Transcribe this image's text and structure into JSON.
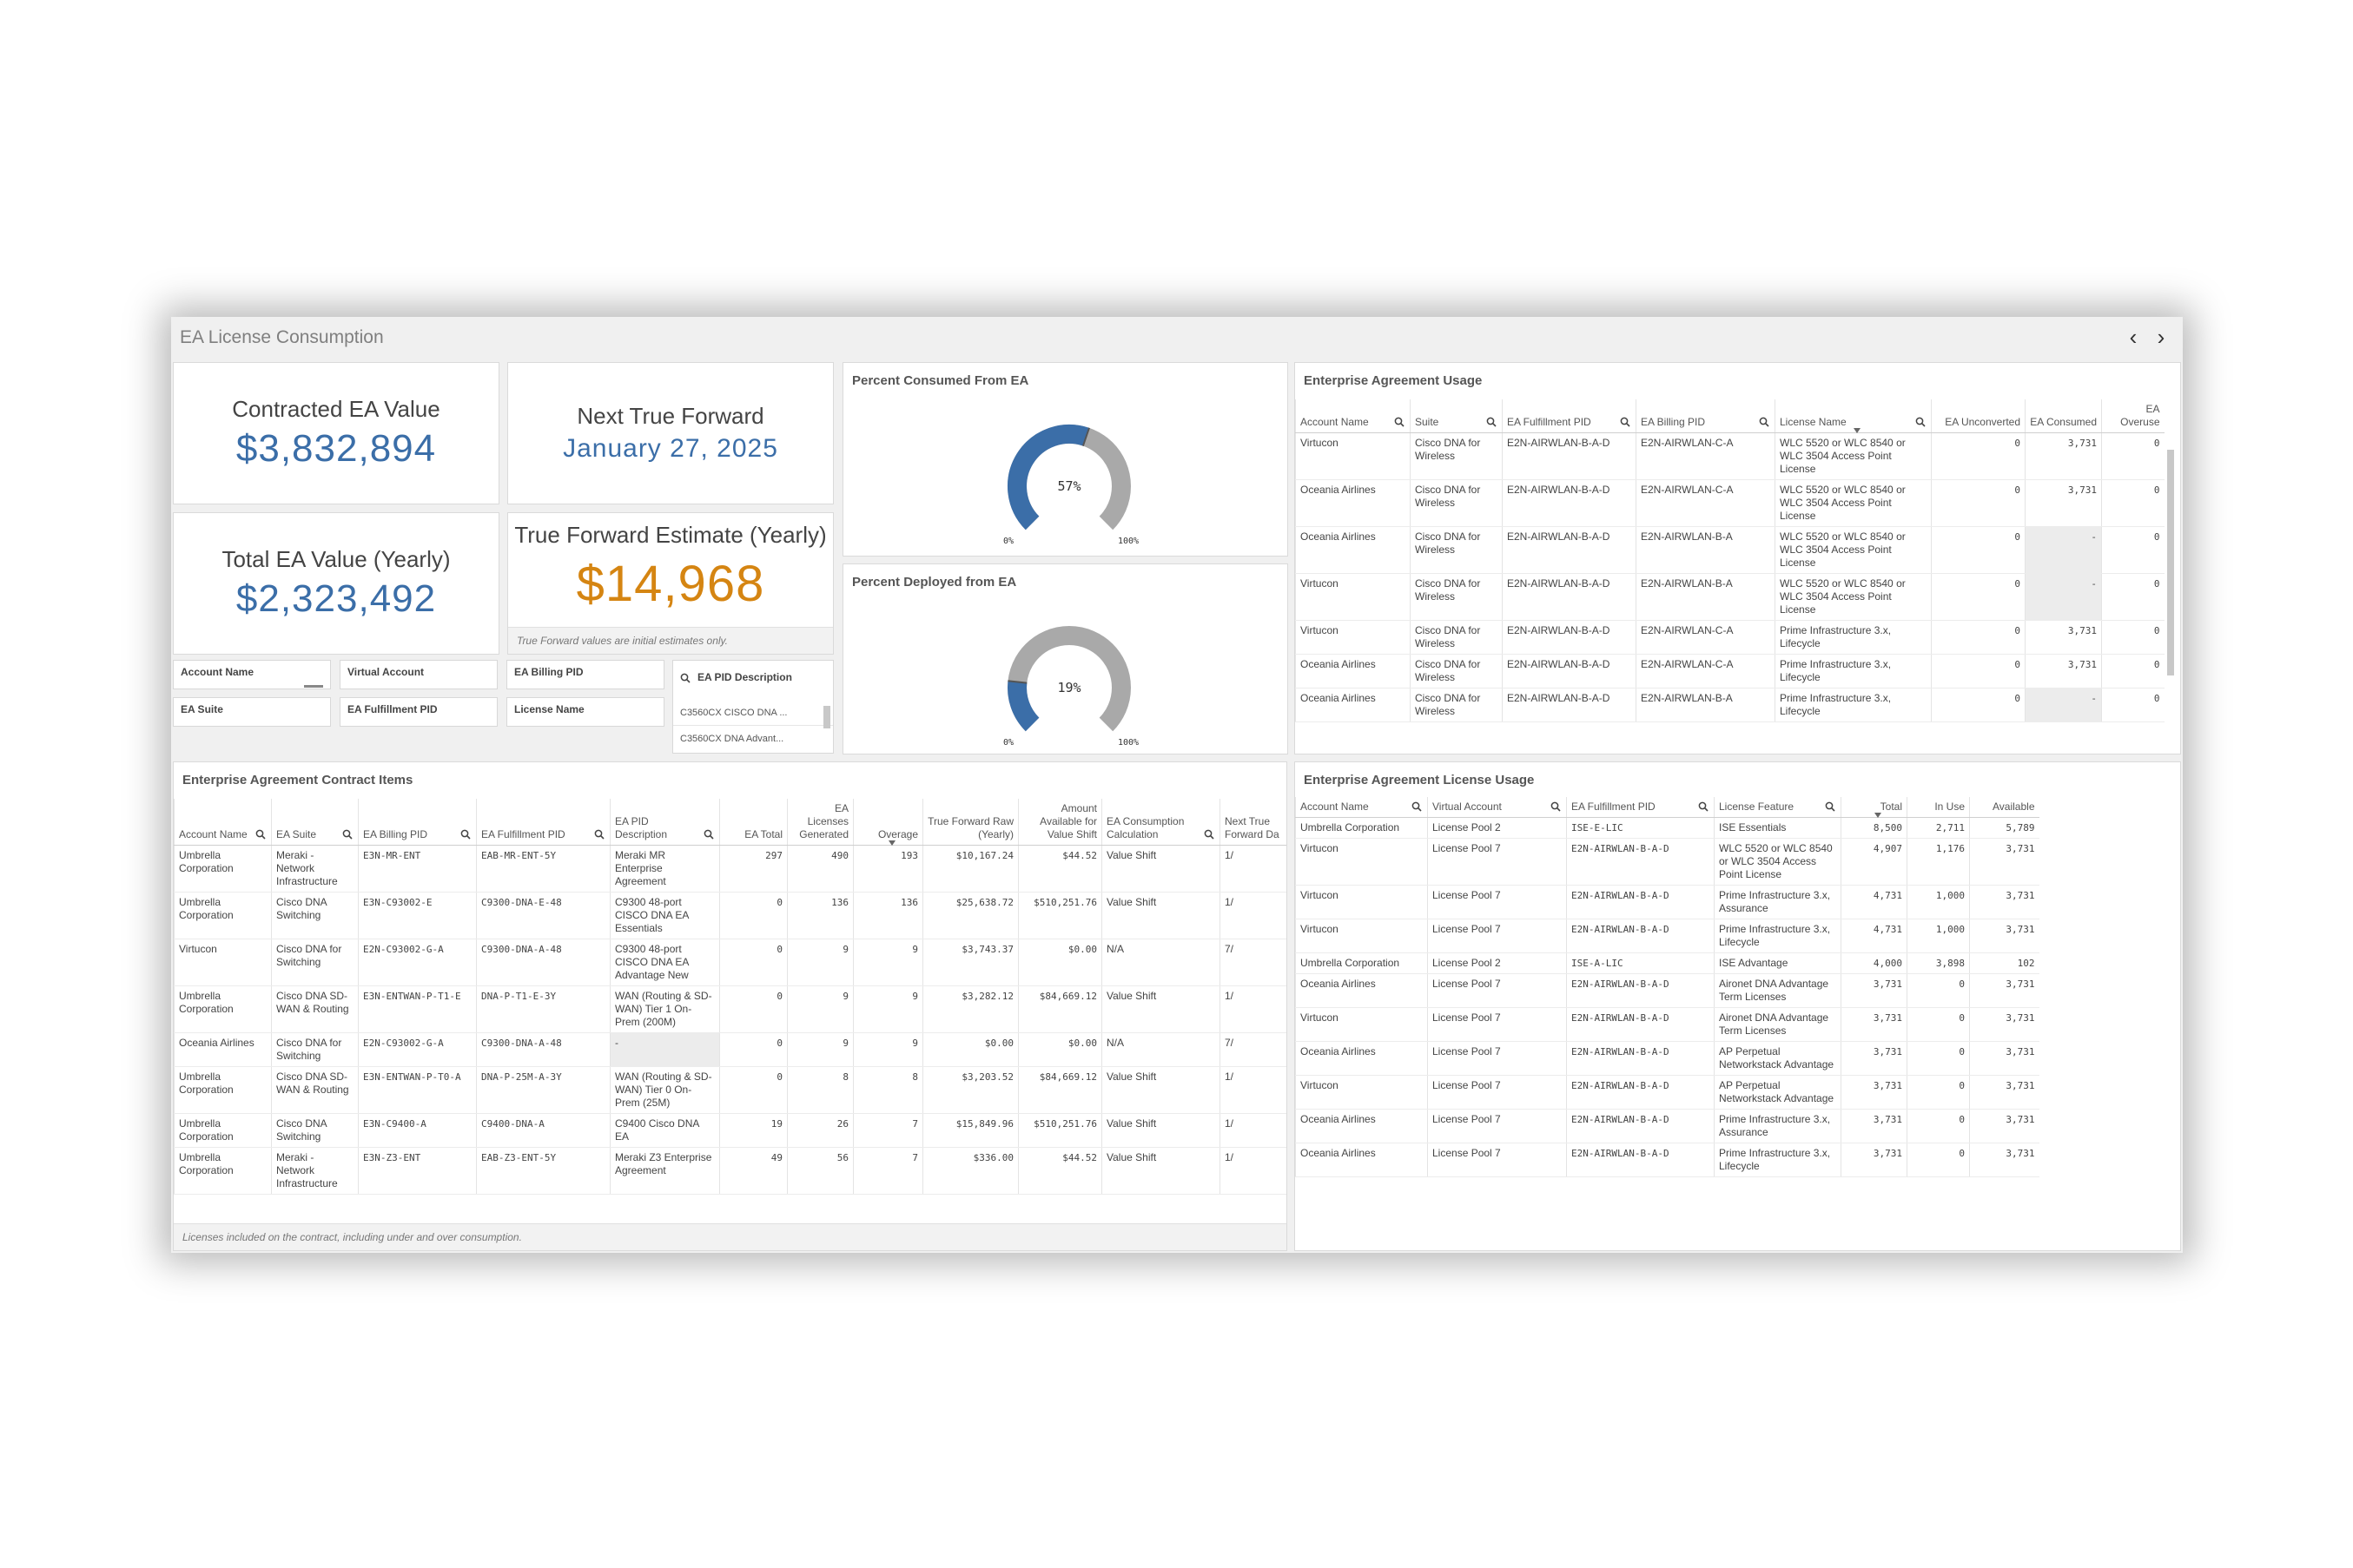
{
  "app": {
    "title": "EA License Consumption",
    "prev_icon": "‹",
    "next_icon": "›"
  },
  "kpis": {
    "contracted": {
      "label": "Contracted EA Value",
      "value": "$3,832,894"
    },
    "next_tf": {
      "label": "Next True Forward",
      "value": "January 27, 2025"
    },
    "total_yearly": {
      "label": "Total EA Value (Yearly)",
      "value": "$2,323,492"
    },
    "tf_estimate": {
      "label": "True Forward Estimate (Yearly)",
      "value": "$14,968",
      "note": "True Forward values are initial estimates only."
    }
  },
  "filters": {
    "account_name": "Account Name",
    "virtual_account": "Virtual Account",
    "ea_billing_pid": "EA Billing PID",
    "ea_suite": "EA Suite",
    "ea_fulfillment_pid": "EA Fulfillment PID",
    "license_name": "License Name",
    "ea_pid_description": {
      "label": "EA PID Description",
      "items": [
        "C3560CX CISCO DNA ...",
        "C3560CX DNA Advant..."
      ]
    }
  },
  "gauges": {
    "consumed": {
      "title": "Percent Consumed From EA",
      "value": "57%",
      "fraction": 0.57,
      "min_label": "0%",
      "max_label": "100%"
    },
    "deployed": {
      "title": "Percent Deployed from EA",
      "value": "19%",
      "fraction": 0.19,
      "min_label": "0%",
      "max_label": "100%"
    }
  },
  "colors": {
    "accent": "#3b6ea8",
    "orange": "#d58512",
    "gauge_track": "#a9a9a9"
  },
  "usage": {
    "title": "Enterprise Agreement Usage",
    "headers": [
      "Account Name",
      "Suite",
      "EA Fulfillment PID",
      "EA Billing PID",
      "License Name",
      "EA Unconverted",
      "EA Consumed",
      "EA Overuse"
    ],
    "rows": [
      [
        "Virtucon",
        "Cisco DNA for Wireless",
        "E2N-AIRWLAN-B-A-D",
        "E2N-AIRWLAN-C-A",
        "WLC 5520 or WLC 8540 or WLC 3504 Access Point License",
        "0",
        "3,731",
        "0"
      ],
      [
        "Oceania Airlines",
        "Cisco DNA for Wireless",
        "E2N-AIRWLAN-B-A-D",
        "E2N-AIRWLAN-C-A",
        "WLC 5520 or WLC 8540 or WLC 3504 Access Point License",
        "0",
        "3,731",
        "0"
      ],
      [
        "Oceania Airlines",
        "Cisco DNA for Wireless",
        "E2N-AIRWLAN-B-A-D",
        "E2N-AIRWLAN-B-A",
        "WLC 5520 or WLC 8540 or WLC 3504 Access Point License",
        "0",
        "-",
        "0"
      ],
      [
        "Virtucon",
        "Cisco DNA for Wireless",
        "E2N-AIRWLAN-B-A-D",
        "E2N-AIRWLAN-B-A",
        "WLC 5520 or WLC 8540 or WLC 3504 Access Point License",
        "0",
        "-",
        "0"
      ],
      [
        "Virtucon",
        "Cisco DNA for Wireless",
        "E2N-AIRWLAN-B-A-D",
        "E2N-AIRWLAN-C-A",
        "Prime Infrastructure 3.x, Lifecycle",
        "0",
        "3,731",
        "0"
      ],
      [
        "Oceania Airlines",
        "Cisco DNA for Wireless",
        "E2N-AIRWLAN-B-A-D",
        "E2N-AIRWLAN-C-A",
        "Prime Infrastructure 3.x, Lifecycle",
        "0",
        "3,731",
        "0"
      ],
      [
        "Oceania Airlines",
        "Cisco DNA for Wireless",
        "E2N-AIRWLAN-B-A-D",
        "E2N-AIRWLAN-B-A",
        "Prime Infrastructure 3.x, Lifecycle",
        "0",
        "-",
        "0"
      ]
    ]
  },
  "contract": {
    "title": "Enterprise Agreement Contract Items",
    "footnote": "Licenses included on the contract, including under and over consumption.",
    "headers": [
      "Account Name",
      "EA Suite",
      "EA Billing PID",
      "EA Fulfillment PID",
      "EA PID Description",
      "EA Total",
      "EA Licenses Generated",
      "Overage",
      "True Forward Raw (Yearly)",
      "Amount Available for Value Shift",
      "EA Consumption Calculation",
      "Next True Forward Da"
    ],
    "rows": [
      [
        "Umbrella Corporation",
        "Meraki - Network Infrastructure",
        "E3N-MR-ENT",
        "EAB-MR-ENT-5Y",
        "Meraki MR Enterprise Agreement",
        "297",
        "490",
        "193",
        "$10,167.24",
        "$44.52",
        "Value Shift",
        "1/"
      ],
      [
        "Umbrella Corporation",
        "Cisco DNA Switching",
        "E3N-C93002-E",
        "C9300-DNA-E-48",
        "C9300 48-port CISCO DNA EA Essentials",
        "0",
        "136",
        "136",
        "$25,638.72",
        "$510,251.76",
        "Value Shift",
        "1/"
      ],
      [
        "Virtucon",
        "Cisco DNA for Switching",
        "E2N-C93002-G-A",
        "C9300-DNA-A-48",
        "C9300 48-port CISCO DNA EA Advantage New",
        "0",
        "9",
        "9",
        "$3,743.37",
        "$0.00",
        "N/A",
        "7/"
      ],
      [
        "Umbrella Corporation",
        "Cisco DNA SD-WAN & Routing",
        "E3N-ENTWAN-P-T1-E",
        "DNA-P-T1-E-3Y",
        "WAN (Routing & SD-WAN) Tier 1 On-Prem (200M)",
        "0",
        "9",
        "9",
        "$3,282.12",
        "$84,669.12",
        "Value Shift",
        "1/"
      ],
      [
        "Oceania Airlines",
        "Cisco DNA for Switching",
        "E2N-C93002-G-A",
        "C9300-DNA-A-48",
        "-",
        "0",
        "9",
        "9",
        "$0.00",
        "$0.00",
        "N/A",
        "7/"
      ],
      [
        "Umbrella Corporation",
        "Cisco DNA SD-WAN & Routing",
        "E3N-ENTWAN-P-T0-A",
        "DNA-P-25M-A-3Y",
        "WAN (Routing & SD-WAN) Tier 0 On-Prem (25M)",
        "0",
        "8",
        "8",
        "$3,203.52",
        "$84,669.12",
        "Value Shift",
        "1/"
      ],
      [
        "Umbrella Corporation",
        "Cisco DNA Switching",
        "E3N-C9400-A",
        "C9400-DNA-A",
        "C9400 Cisco DNA EA",
        "19",
        "26",
        "7",
        "$15,849.96",
        "$510,251.76",
        "Value Shift",
        "1/"
      ],
      [
        "Umbrella Corporation",
        "Meraki - Network Infrastructure",
        "E3N-Z3-ENT",
        "EAB-Z3-ENT-5Y",
        "Meraki Z3 Enterprise Agreement",
        "49",
        "56",
        "7",
        "$336.00",
        "$44.52",
        "Value Shift",
        "1/"
      ]
    ]
  },
  "license_usage": {
    "title": "Enterprise Agreement License Usage",
    "headers": [
      "Account Name",
      "Virtual Account",
      "EA Fulfillment PID",
      "License Feature",
      "Total",
      "In Use",
      "Available"
    ],
    "rows": [
      [
        "Umbrella Corporation",
        "License Pool 2",
        "ISE-E-LIC",
        "ISE Essentials",
        "8,500",
        "2,711",
        "5,789"
      ],
      [
        "Virtucon",
        "License Pool 7",
        "E2N-AIRWLAN-B-A-D",
        "WLC 5520 or WLC 8540 or WLC 3504 Access Point License",
        "4,907",
        "1,176",
        "3,731"
      ],
      [
        "Virtucon",
        "License Pool 7",
        "E2N-AIRWLAN-B-A-D",
        "Prime Infrastructure 3.x, Assurance",
        "4,731",
        "1,000",
        "3,731"
      ],
      [
        "Virtucon",
        "License Pool 7",
        "E2N-AIRWLAN-B-A-D",
        "Prime Infrastructure 3.x, Lifecycle",
        "4,731",
        "1,000",
        "3,731"
      ],
      [
        "Umbrella Corporation",
        "License Pool 2",
        "ISE-A-LIC",
        "ISE Advantage",
        "4,000",
        "3,898",
        "102"
      ],
      [
        "Oceania Airlines",
        "License Pool 7",
        "E2N-AIRWLAN-B-A-D",
        "Aironet DNA Advantage Term Licenses",
        "3,731",
        "0",
        "3,731"
      ],
      [
        "Virtucon",
        "License Pool 7",
        "E2N-AIRWLAN-B-A-D",
        "Aironet DNA Advantage Term Licenses",
        "3,731",
        "0",
        "3,731"
      ],
      [
        "Oceania Airlines",
        "License Pool 7",
        "E2N-AIRWLAN-B-A-D",
        "AP Perpetual Networkstack Advantage",
        "3,731",
        "0",
        "3,731"
      ],
      [
        "Virtucon",
        "License Pool 7",
        "E2N-AIRWLAN-B-A-D",
        "AP Perpetual Networkstack Advantage",
        "3,731",
        "0",
        "3,731"
      ],
      [
        "Oceania Airlines",
        "License Pool 7",
        "E2N-AIRWLAN-B-A-D",
        "Prime Infrastructure 3.x, Assurance",
        "3,731",
        "0",
        "3,731"
      ],
      [
        "Oceania Airlines",
        "License Pool 7",
        "E2N-AIRWLAN-B-A-D",
        "Prime Infrastructure 3.x, Lifecycle",
        "3,731",
        "0",
        "3,731"
      ]
    ]
  }
}
